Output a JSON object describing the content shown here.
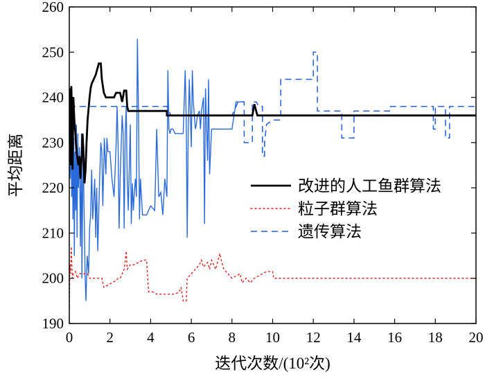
{
  "chart_data": {
    "type": "line",
    "title": "",
    "xlabel": "迭代次数/(10²次)",
    "ylabel": "平均距离",
    "xlim": [
      0,
      20
    ],
    "ylim": [
      190,
      260
    ],
    "x_ticks": [
      0,
      2,
      4,
      6,
      8,
      10,
      12,
      14,
      16,
      18,
      20
    ],
    "y_ticks": [
      190,
      200,
      210,
      220,
      230,
      240,
      250,
      260
    ],
    "grid": false,
    "legend_position": "center-right",
    "series": [
      {
        "name": "改进的人工鱼群算法",
        "color": "#000000",
        "dash": "solid",
        "points": [
          [
            0.0,
            237.5
          ],
          [
            0.02,
            230
          ],
          [
            0.05,
            242
          ],
          [
            0.08,
            225
          ],
          [
            0.1,
            242.5
          ],
          [
            0.13,
            237
          ],
          [
            0.16,
            224
          ],
          [
            0.2,
            240
          ],
          [
            0.25,
            235
          ],
          [
            0.3,
            232
          ],
          [
            0.35,
            228
          ],
          [
            0.45,
            225
          ],
          [
            0.5,
            227
          ],
          [
            0.55,
            222
          ],
          [
            0.6,
            226
          ],
          [
            0.65,
            232
          ],
          [
            0.7,
            228
          ],
          [
            0.75,
            221
          ],
          [
            0.8,
            224
          ],
          [
            0.85,
            230
          ],
          [
            0.9,
            235
          ],
          [
            1.0,
            240
          ],
          [
            1.05,
            242
          ],
          [
            1.1,
            243
          ],
          [
            1.3,
            245
          ],
          [
            1.45,
            247.5
          ],
          [
            1.55,
            247.5
          ],
          [
            1.6,
            244
          ],
          [
            1.7,
            241
          ],
          [
            1.8,
            240
          ],
          [
            2.0,
            240
          ],
          [
            2.2,
            240
          ],
          [
            2.3,
            241
          ],
          [
            2.5,
            241
          ],
          [
            2.6,
            239
          ],
          [
            2.7,
            241.5
          ],
          [
            2.8,
            241.5
          ],
          [
            2.85,
            238
          ],
          [
            2.9,
            237
          ],
          [
            3.2,
            237
          ],
          [
            4.8,
            237
          ],
          [
            4.8,
            236
          ],
          [
            8.8,
            236
          ],
          [
            9.0,
            236
          ],
          [
            9.1,
            238.5
          ],
          [
            9.25,
            236
          ],
          [
            9.4,
            236
          ],
          [
            20.0,
            236
          ]
        ]
      },
      {
        "name": "粒子群算法",
        "color": "#e02020",
        "dash": "dot",
        "points": [
          [
            0.0,
            193
          ],
          [
            0.03,
            203
          ],
          [
            0.06,
            201
          ],
          [
            0.1,
            207
          ],
          [
            0.15,
            200
          ],
          [
            0.2,
            201
          ],
          [
            0.3,
            201.5
          ],
          [
            0.4,
            200
          ],
          [
            0.5,
            201
          ],
          [
            0.6,
            201
          ],
          [
            0.7,
            201
          ],
          [
            0.8,
            201
          ],
          [
            0.9,
            201
          ],
          [
            1.0,
            200
          ],
          [
            1.2,
            200
          ],
          [
            1.4,
            200
          ],
          [
            1.6,
            200
          ],
          [
            1.7,
            198
          ],
          [
            1.9,
            198.5
          ],
          [
            2.1,
            199
          ],
          [
            2.3,
            199.5
          ],
          [
            2.4,
            200
          ],
          [
            2.5,
            200
          ],
          [
            2.6,
            201
          ],
          [
            2.7,
            202
          ],
          [
            2.8,
            206
          ],
          [
            2.85,
            202
          ],
          [
            3.0,
            203
          ],
          [
            3.2,
            203
          ],
          [
            3.4,
            203.5
          ],
          [
            3.6,
            204
          ],
          [
            3.8,
            204
          ],
          [
            3.9,
            197
          ],
          [
            4.1,
            197
          ],
          [
            4.3,
            196.5
          ],
          [
            4.6,
            196.5
          ],
          [
            4.9,
            196.5
          ],
          [
            5.0,
            196.5
          ],
          [
            5.2,
            196.5
          ],
          [
            5.4,
            197
          ],
          [
            5.5,
            198
          ],
          [
            5.6,
            195
          ],
          [
            5.75,
            195
          ],
          [
            5.8,
            200
          ],
          [
            6.0,
            201
          ],
          [
            6.2,
            202
          ],
          [
            6.4,
            203
          ],
          [
            6.5,
            204
          ],
          [
            6.6,
            202.5
          ],
          [
            6.7,
            203
          ],
          [
            6.8,
            203.5
          ],
          [
            6.9,
            202
          ],
          [
            7.0,
            204
          ],
          [
            7.2,
            202
          ],
          [
            7.4,
            205.5
          ],
          [
            7.5,
            203.5
          ],
          [
            7.6,
            202
          ],
          [
            7.7,
            201.5
          ],
          [
            7.8,
            201
          ],
          [
            8.0,
            200
          ],
          [
            8.2,
            200.5
          ],
          [
            8.4,
            201
          ],
          [
            8.5,
            199
          ],
          [
            8.7,
            200
          ],
          [
            8.9,
            199
          ],
          [
            9.1,
            200
          ],
          [
            9.3,
            200.5
          ],
          [
            9.5,
            201
          ],
          [
            9.7,
            201.5
          ],
          [
            10.0,
            201.5
          ],
          [
            10.05,
            200
          ],
          [
            20.0,
            200
          ]
        ]
      },
      {
        "name": "遗传算法",
        "color": "#1f5fe0",
        "dash": "dash",
        "points": [
          [
            0.0,
            238
          ],
          [
            0.5,
            238
          ],
          [
            0.8,
            238
          ],
          [
            2.5,
            238
          ],
          [
            3.0,
            238
          ],
          [
            4.0,
            238
          ],
          [
            4.8,
            238
          ],
          [
            5.0,
            236
          ],
          [
            7.0,
            236
          ],
          [
            7.5,
            236
          ],
          [
            8.0,
            236
          ],
          [
            8.3,
            239
          ],
          [
            8.6,
            239
          ],
          [
            8.6,
            230
          ],
          [
            9.0,
            230
          ],
          [
            9.0,
            239
          ],
          [
            9.2,
            239
          ],
          [
            9.3,
            238
          ],
          [
            9.5,
            238
          ],
          [
            9.5,
            227
          ],
          [
            9.6,
            227
          ],
          [
            9.6,
            230
          ],
          [
            9.7,
            234
          ],
          [
            10.0,
            235
          ],
          [
            10.4,
            235
          ],
          [
            10.4,
            244
          ],
          [
            11.8,
            244
          ],
          [
            12.0,
            244
          ],
          [
            12.0,
            250
          ],
          [
            12.2,
            250
          ],
          [
            12.2,
            237
          ],
          [
            13.4,
            237
          ],
          [
            13.4,
            231
          ],
          [
            14.0,
            231
          ],
          [
            14.0,
            237
          ],
          [
            15.8,
            237
          ],
          [
            15.8,
            238
          ],
          [
            17.9,
            238
          ],
          [
            17.9,
            233
          ],
          [
            18.0,
            233
          ],
          [
            18.0,
            238
          ],
          [
            18.5,
            238
          ],
          [
            18.5,
            231
          ],
          [
            18.7,
            231
          ],
          [
            18.7,
            238
          ],
          [
            20.0,
            238
          ]
        ]
      },
      {
        "name": "",
        "color": "#2a6ad8",
        "dash": "solid",
        "points": [
          [
            0.0,
            233
          ],
          [
            0.05,
            222
          ],
          [
            0.08,
            235
          ],
          [
            0.12,
            218
          ],
          [
            0.15,
            231
          ],
          [
            0.18,
            213
          ],
          [
            0.22,
            231
          ],
          [
            0.25,
            205
          ],
          [
            0.28,
            228
          ],
          [
            0.32,
            215
          ],
          [
            0.35,
            234
          ],
          [
            0.38,
            209
          ],
          [
            0.42,
            232
          ],
          [
            0.45,
            220
          ],
          [
            0.5,
            229
          ],
          [
            0.55,
            207
          ],
          [
            0.6,
            232
          ],
          [
            0.62,
            200
          ],
          [
            0.68,
            230
          ],
          [
            0.72,
            218
          ],
          [
            0.78,
            200
          ],
          [
            0.82,
            195
          ],
          [
            0.88,
            205
          ],
          [
            0.95,
            201
          ],
          [
            1.0,
            211
          ],
          [
            1.05,
            214
          ],
          [
            1.1,
            224
          ],
          [
            1.15,
            213
          ],
          [
            1.2,
            217
          ],
          [
            1.25,
            222
          ],
          [
            1.3,
            209
          ],
          [
            1.32,
            215
          ],
          [
            1.35,
            220
          ],
          [
            1.4,
            206
          ],
          [
            1.45,
            215
          ],
          [
            1.5,
            223
          ],
          [
            1.55,
            230
          ],
          [
            1.6,
            228
          ],
          [
            1.65,
            216
          ],
          [
            1.7,
            226
          ],
          [
            1.72,
            231
          ],
          [
            1.75,
            228
          ],
          [
            1.8,
            223
          ],
          [
            1.85,
            231
          ],
          [
            1.9,
            228
          ],
          [
            2.0,
            228
          ],
          [
            2.1,
            222
          ],
          [
            2.2,
            218
          ],
          [
            2.3,
            229
          ],
          [
            2.35,
            238
          ],
          [
            2.4,
            230
          ],
          [
            2.45,
            211
          ],
          [
            2.5,
            222
          ],
          [
            2.6,
            236
          ],
          [
            2.65,
            232
          ],
          [
            2.7,
            211
          ],
          [
            2.75,
            232
          ],
          [
            2.8,
            238
          ],
          [
            2.85,
            222
          ],
          [
            2.9,
            215
          ],
          [
            3.0,
            234
          ],
          [
            3.05,
            212
          ],
          [
            3.1,
            221
          ],
          [
            3.15,
            215
          ],
          [
            3.2,
            219
          ],
          [
            3.25,
            222
          ],
          [
            3.3,
            218
          ],
          [
            3.35,
            253
          ],
          [
            3.4,
            238
          ],
          [
            3.45,
            213
          ],
          [
            3.5,
            222
          ],
          [
            3.6,
            214
          ],
          [
            3.8,
            214
          ],
          [
            4.0,
            216
          ],
          [
            4.2,
            215
          ],
          [
            4.3,
            233
          ],
          [
            4.4,
            218
          ],
          [
            4.5,
            219
          ],
          [
            4.6,
            214
          ],
          [
            4.7,
            222
          ],
          [
            4.8,
            218
          ],
          [
            4.85,
            246
          ],
          [
            4.9,
            233
          ],
          [
            4.95,
            232
          ],
          [
            5.0,
            233
          ],
          [
            5.1,
            233
          ],
          [
            5.2,
            232
          ],
          [
            5.4,
            232
          ],
          [
            5.6,
            232
          ],
          [
            5.7,
            246
          ],
          [
            5.75,
            235
          ],
          [
            5.8,
            209
          ],
          [
            5.85,
            233
          ],
          [
            5.9,
            244
          ],
          [
            6.0,
            229
          ],
          [
            6.05,
            246
          ],
          [
            6.1,
            239
          ],
          [
            6.2,
            233
          ],
          [
            6.25,
            234
          ],
          [
            6.3,
            236
          ],
          [
            6.4,
            237
          ],
          [
            6.45,
            233
          ],
          [
            6.5,
            237
          ],
          [
            6.6,
            240
          ],
          [
            6.65,
            212
          ],
          [
            6.7,
            242
          ],
          [
            6.8,
            226
          ],
          [
            6.85,
            244
          ],
          [
            6.9,
            223
          ],
          [
            7.0,
            233
          ],
          [
            7.5,
            233
          ],
          [
            7.8,
            233
          ],
          [
            8.0,
            233
          ],
          [
            8.2,
            239
          ],
          [
            8.5,
            239
          ],
          [
            8.6,
            239
          ]
        ]
      }
    ]
  }
}
